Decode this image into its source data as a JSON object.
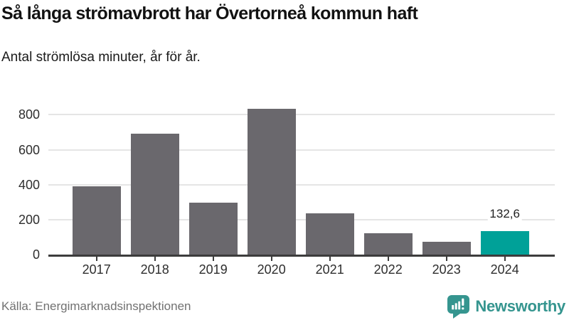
{
  "header": {
    "title": "Så långa strömavbrott har Övertorneå kommun haft",
    "subtitle": "Antal strömlösa minuter, år för år."
  },
  "footer": {
    "source": "Källa: Energimarknadsinspektionen",
    "brand": "Newsworthy"
  },
  "colors": {
    "bar": "#6A686D",
    "bar_highlight": "#00A198",
    "brand_teal": "#35958F",
    "gridline": "#E5E5E5",
    "axis": "#3C3C3C",
    "tick": "#3C3C3C"
  },
  "chart_data": {
    "type": "bar",
    "title": "Så långa strömavbrott har Övertorneå kommun haft",
    "subtitle": "Antal strömlösa minuter, år för år.",
    "xlabel": "",
    "ylabel": "",
    "categories": [
      "2017",
      "2018",
      "2019",
      "2020",
      "2021",
      "2022",
      "2023",
      "2024"
    ],
    "values": [
      390,
      692,
      296,
      836,
      237,
      122,
      72,
      132.6
    ],
    "highlight_index": 7,
    "value_labels": [
      {
        "index": 7,
        "text": "132,6"
      }
    ],
    "yticks": [
      0,
      200,
      400,
      600,
      800
    ],
    "ylim": [
      0,
      867
    ],
    "grid": true,
    "legend": false
  }
}
